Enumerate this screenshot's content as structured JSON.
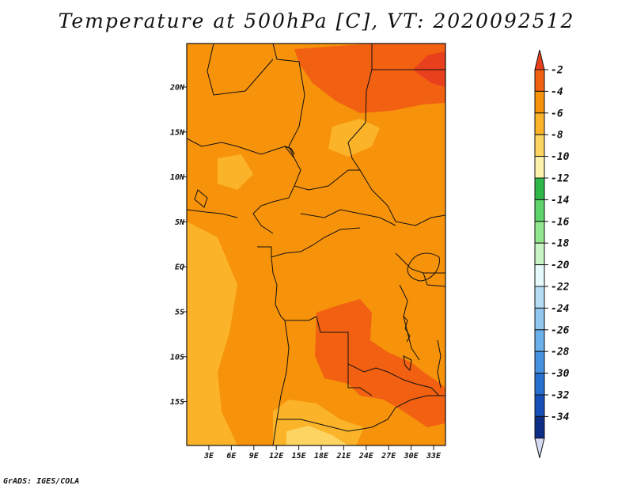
{
  "title": "Temperature at 500hPa [C], VT: 2020092512",
  "credit": "GrADS: IGES/COLA",
  "map": {
    "lat_labels": [
      "20N",
      "15N",
      "10N",
      "5N",
      "EQ",
      "5S",
      "10S",
      "15S"
    ],
    "lon_labels": [
      "3E",
      "6E",
      "9E",
      "12E",
      "15E",
      "18E",
      "21E",
      "24E",
      "27E",
      "30E",
      "33E"
    ]
  },
  "colorbar": {
    "labels": [
      "-2",
      "-4",
      "-6",
      "-8",
      "-10",
      "-12",
      "-14",
      "-16",
      "-18",
      "-20",
      "-22",
      "-24",
      "-26",
      "-28",
      "-30",
      "-32",
      "-34"
    ],
    "colors": {
      "above": "#e8401c",
      "bins": [
        "#f26012",
        "#f7930a",
        "#fbb42a",
        "#fdd462",
        "#fdf2ab",
        "#2eb84a",
        "#5ed46a",
        "#92e68e",
        "#c8f5c4",
        "#e6fafc",
        "#b4dcf2",
        "#8fc7ef",
        "#6ab0ea",
        "#4592e0",
        "#2670cf",
        "#164fb7",
        "#0e2d86"
      ],
      "below": "#d6dbf2"
    }
  }
}
